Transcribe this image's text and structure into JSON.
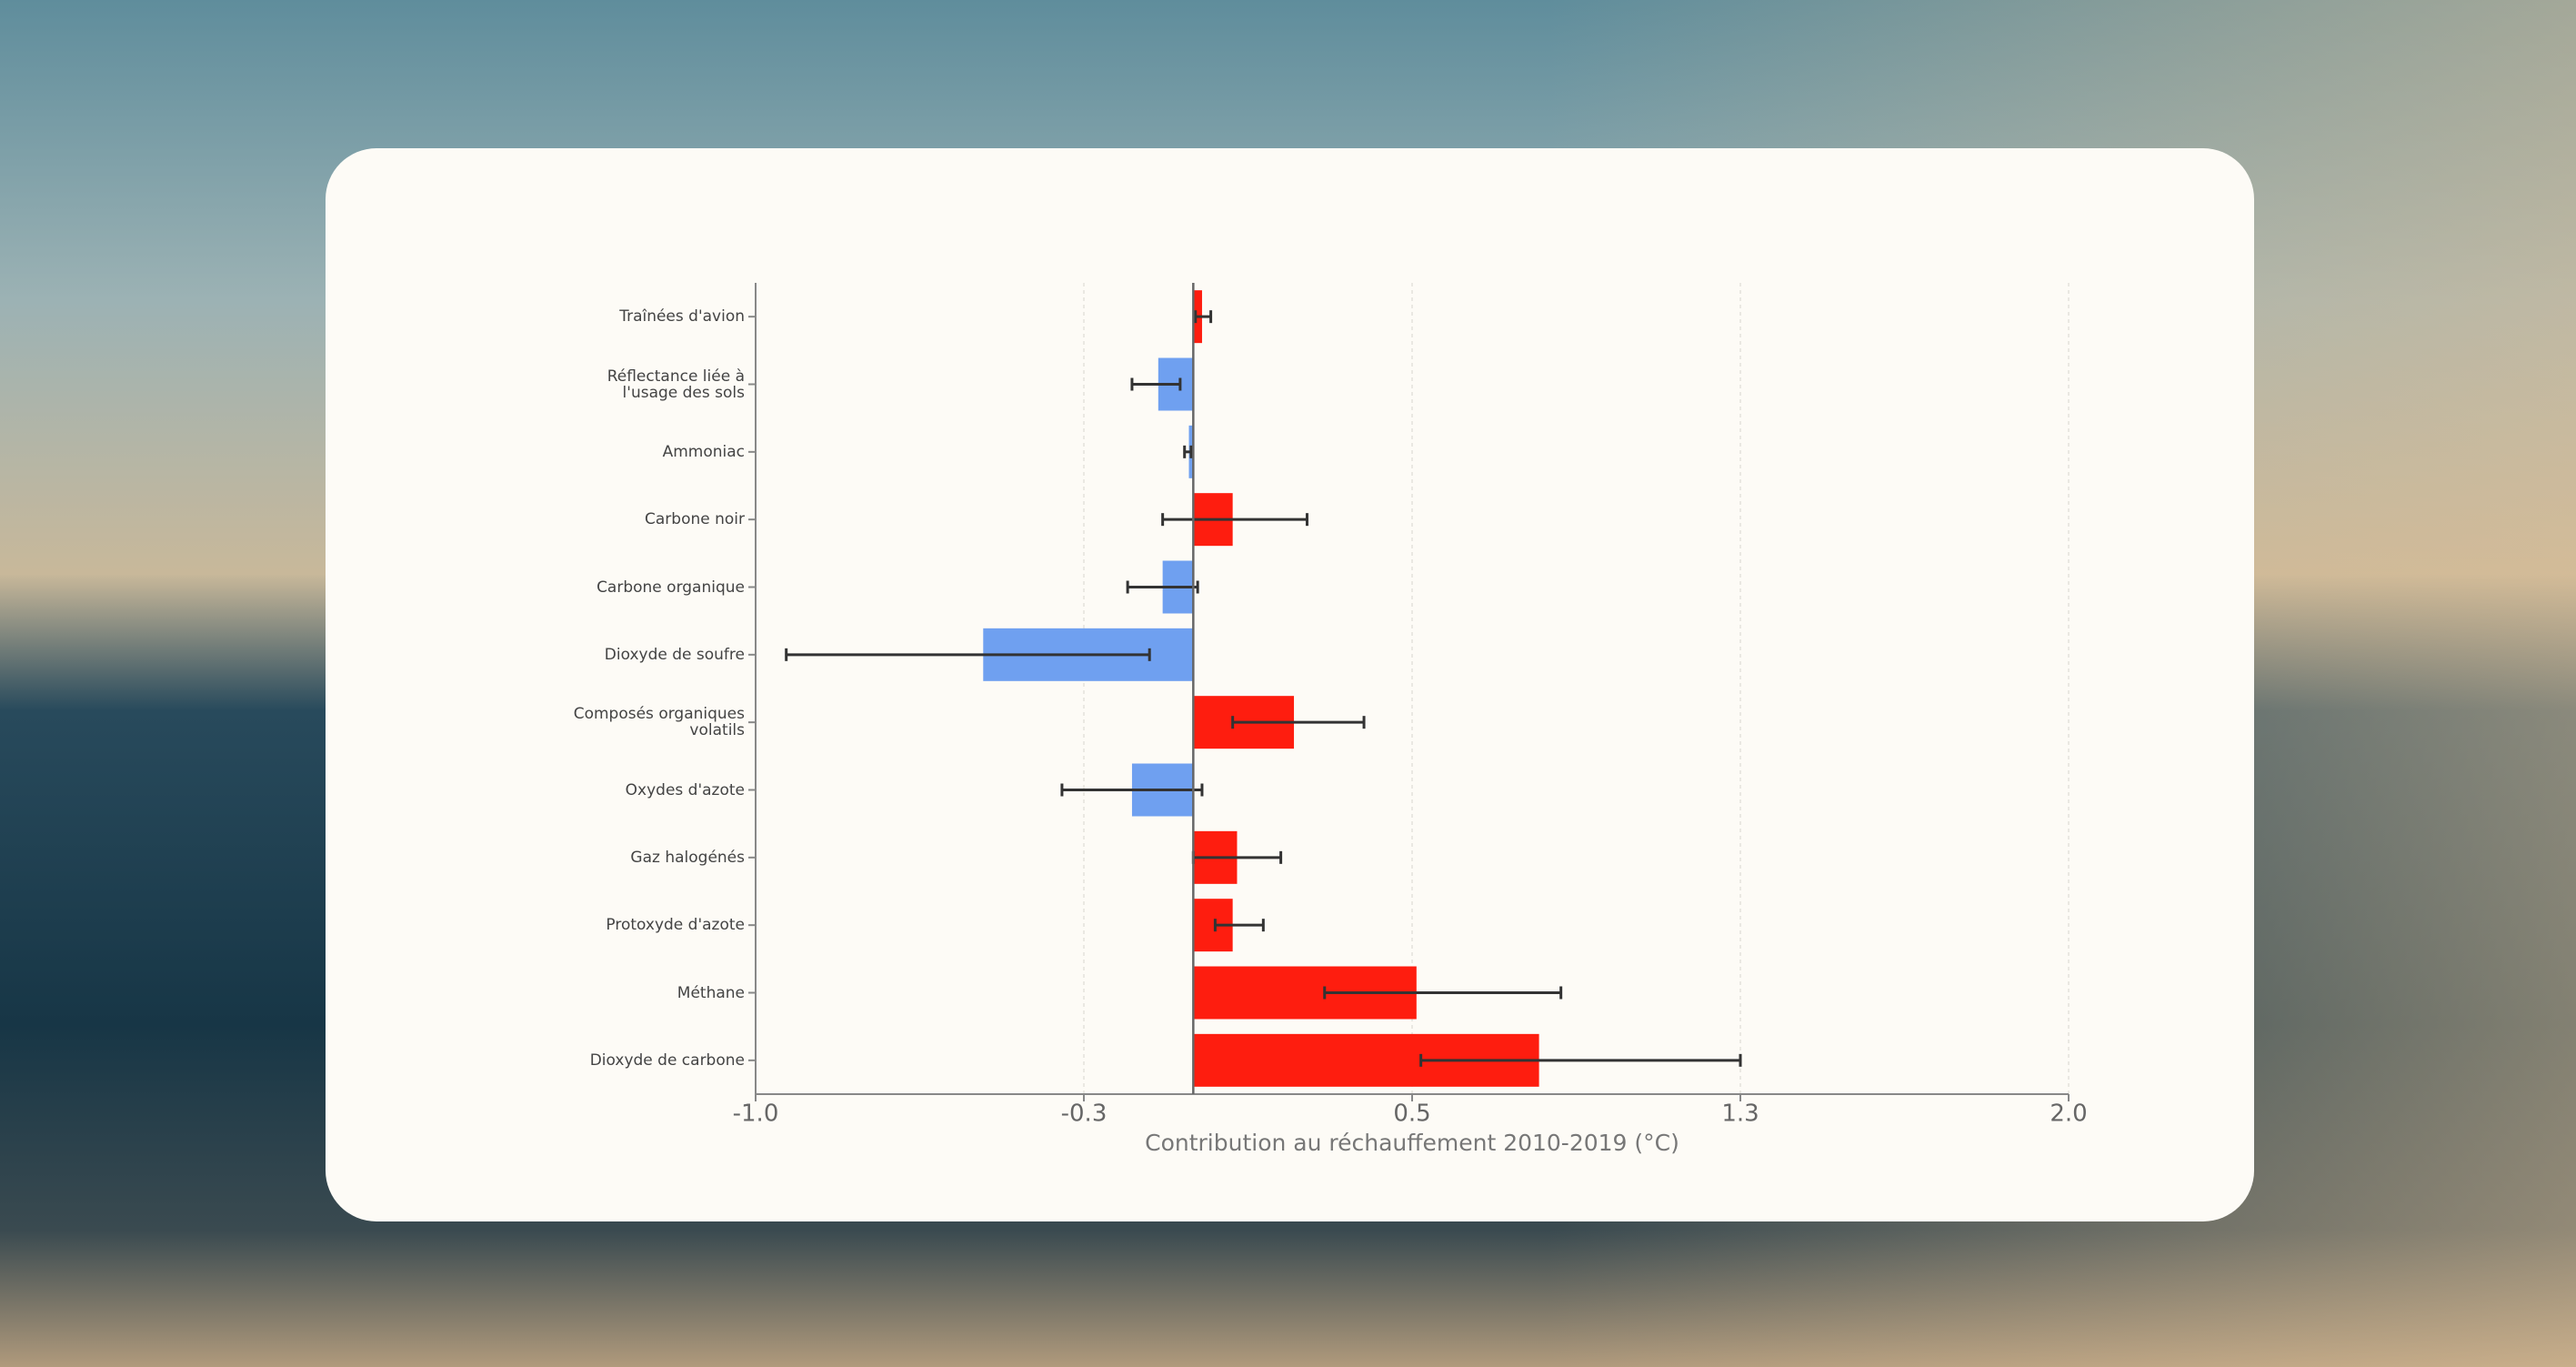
{
  "chart_data": {
    "type": "hbar",
    "xlabel": "Contribution au réchauffement 2010-2019 (°C)",
    "categories": [
      "Traînées d'avion",
      "Réflectance liée à l'usage des sols",
      "Ammoniac",
      "Carbone noir",
      "Carbone organique",
      "Dioxyde de soufre",
      "Composés organiques volatils",
      "Oxydes d'azote",
      "Gaz halogénés",
      "Protoxyde d'azote",
      "Méthane",
      "Dioxyde de carbone"
    ],
    "values": [
      0.02,
      -0.08,
      -0.01,
      0.09,
      -0.07,
      -0.48,
      0.23,
      -0.14,
      0.1,
      0.09,
      0.51,
      0.79
    ],
    "ranges": [
      [
        0.005,
        0.04
      ],
      [
        -0.14,
        -0.03
      ],
      [
        -0.02,
        -0.005
      ],
      [
        -0.07,
        0.26
      ],
      [
        -0.15,
        0.01
      ],
      [
        -0.93,
        -0.1
      ],
      [
        0.09,
        0.39
      ],
      [
        -0.3,
        0.02
      ],
      [
        0.0,
        0.2
      ],
      [
        0.05,
        0.16
      ],
      [
        0.3,
        0.84
      ],
      [
        0.52,
        1.25
      ]
    ],
    "colors": [
      "#fe1d0f",
      "#6fa0f0",
      "#6fa0f0",
      "#fe1d0f",
      "#6fa0f0",
      "#6fa0f0",
      "#fe1d0f",
      "#6fa0f0",
      "#fe1d0f",
      "#fe1d0f",
      "#fe1d0f",
      "#fe1d0f"
    ],
    "xlim": [
      -1.0,
      2.0
    ],
    "xticks": [
      {
        "value": -1.0,
        "label": "-1.0"
      },
      {
        "value": -0.25,
        "label": "-0.3"
      },
      {
        "value": 0.5,
        "label": "0.5"
      },
      {
        "value": 1.25,
        "label": "1.3"
      },
      {
        "value": 2.0,
        "label": "2.0"
      }
    ],
    "grid": true
  }
}
